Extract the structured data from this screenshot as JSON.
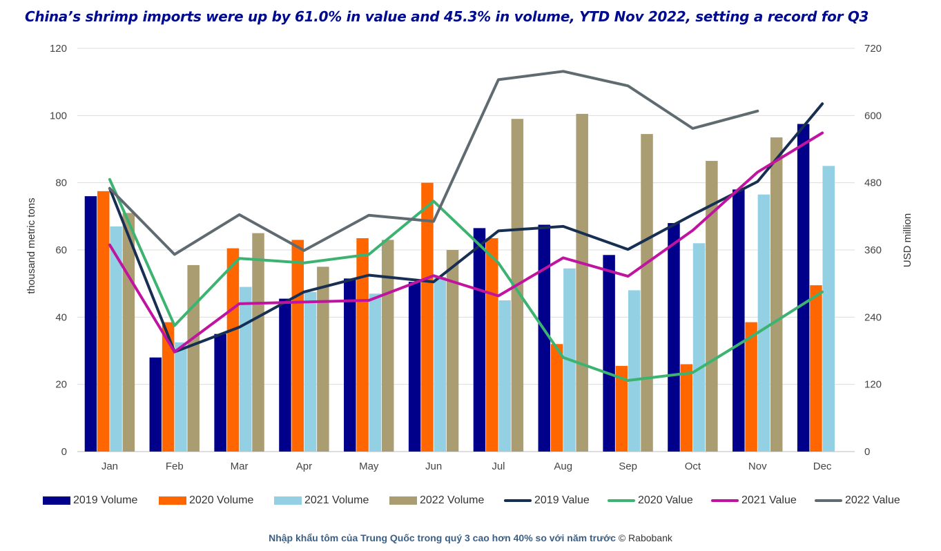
{
  "chart_data": {
    "type": "bar+line",
    "title": "China’s shrimp imports were up by 61.0% in value and 45.3% in volume, YTD Nov 2022, setting a record for Q3",
    "categories": [
      "Jan",
      "Feb",
      "Mar",
      "Apr",
      "May",
      "Jun",
      "Jul",
      "Aug",
      "Sep",
      "Oct",
      "Nov",
      "Dec"
    ],
    "ylabel_left": "thousand metric tons",
    "ylabel_right": "USD million",
    "ylim_left": [
      0,
      120
    ],
    "ylim_right": [
      0,
      720
    ],
    "yticks_left": [
      "0",
      "20",
      "40",
      "60",
      "80",
      "100",
      "120"
    ],
    "yticks_right": [
      "0",
      "120",
      "240",
      "360",
      "480",
      "600",
      "720"
    ],
    "grid": true,
    "legend_position": "bottom",
    "bar_series": [
      {
        "name": "2019 Volume",
        "color": "#00008b",
        "values": [
          76,
          28,
          35,
          45.5,
          51.5,
          50.5,
          66.5,
          67.5,
          58.5,
          68,
          78,
          97.5
        ]
      },
      {
        "name": "2020 Volume",
        "color": "#ff6600",
        "values": [
          77.5,
          38.5,
          60.5,
          63,
          63.5,
          80,
          63.5,
          32,
          25.5,
          26,
          38.5,
          49.5
        ]
      },
      {
        "name": "2021 Volume",
        "color": "#93d0e4",
        "values": [
          67,
          32.5,
          49,
          47.5,
          47,
          52,
          45,
          54.5,
          48,
          62,
          76.5,
          85
        ]
      },
      {
        "name": "2022 Volume",
        "color": "#aa9d72",
        "values": [
          71,
          55.5,
          65,
          55,
          63,
          60,
          99,
          100.5,
          94.5,
          86.5,
          93.5,
          null
        ]
      }
    ],
    "line_series": [
      {
        "name": "2019 Value",
        "color": "#172f52",
        "values": [
          470,
          178,
          222,
          285,
          315,
          303,
          394,
          402,
          361,
          423,
          482,
          621
        ]
      },
      {
        "name": "2020 Value",
        "color": "#3cb371",
        "values": [
          486,
          225,
          345,
          337,
          352,
          447,
          337,
          168,
          127,
          141,
          212,
          285
        ]
      },
      {
        "name": "2021 Value",
        "color": "#c014a0",
        "values": [
          369,
          178,
          264,
          267,
          270,
          314,
          278,
          346,
          313,
          395,
          499,
          569
        ]
      },
      {
        "name": "2022 Value",
        "color": "#5f6b70",
        "values": [
          470,
          352,
          423,
          359,
          422,
          411,
          664,
          679,
          653,
          577,
          608,
          null
        ]
      }
    ]
  },
  "legend": [
    {
      "label": "2019 Volume",
      "kind": "bar",
      "color": "#00008b"
    },
    {
      "label": "2020 Volume",
      "kind": "bar",
      "color": "#ff6600"
    },
    {
      "label": "2021 Volume",
      "kind": "bar",
      "color": "#93d0e4"
    },
    {
      "label": "2022 Volume",
      "kind": "bar",
      "color": "#aa9d72"
    },
    {
      "label": "2019 Value",
      "kind": "line",
      "color": "#172f52"
    },
    {
      "label": "2020 Value",
      "kind": "line",
      "color": "#3cb371"
    },
    {
      "label": "2021 Value",
      "kind": "line",
      "color": "#c014a0"
    },
    {
      "label": "2022 Value",
      "kind": "line",
      "color": "#5f6b70"
    }
  ],
  "caption": {
    "main": "Nhập khẩu tôm của Trung Quốc trong quý 3 cao hơn 40% so với năm trước",
    "credit": "© Rabobank"
  }
}
